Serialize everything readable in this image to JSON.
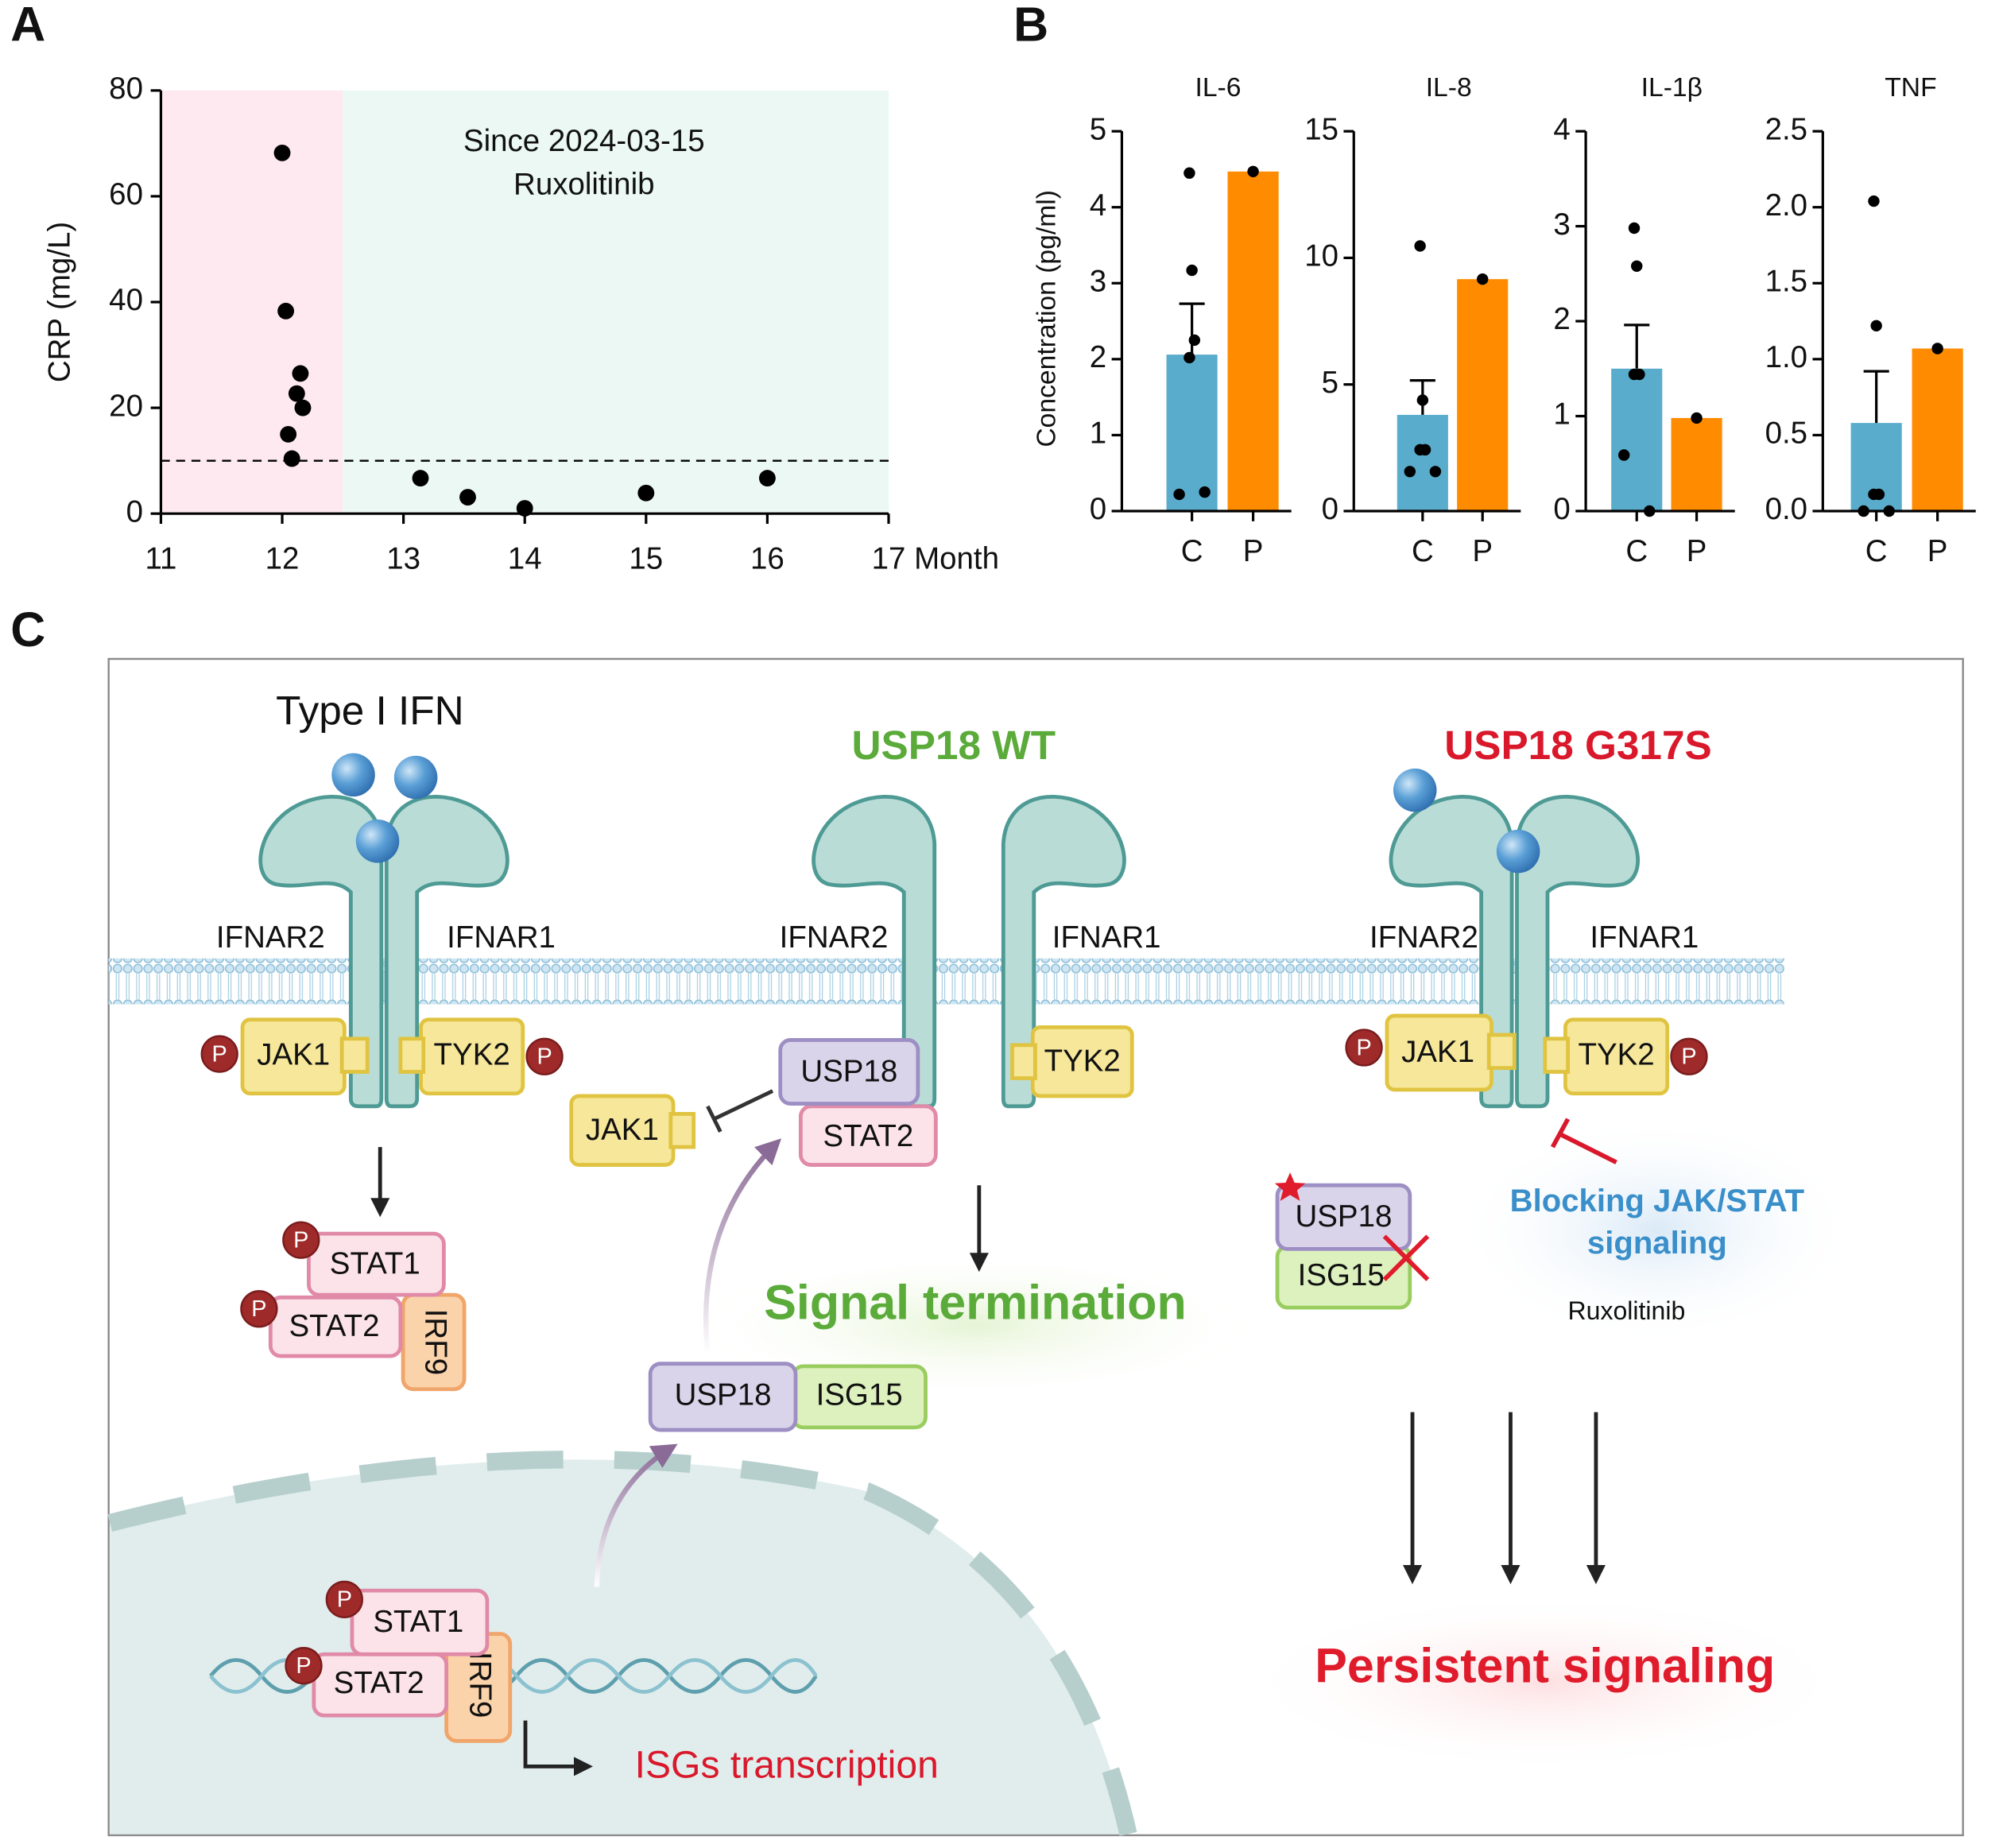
{
  "chart_data": [
    {
      "type": "scatter",
      "panel": "A",
      "xlabel": "Month",
      "ylabel": "CRP (mg/L)",
      "x": [
        12.0,
        12.03,
        12.15,
        12.12,
        12.17,
        12.05,
        12.08,
        13.14,
        13.53,
        14.0,
        15.0,
        16.0
      ],
      "values": [
        68.2,
        38.3,
        26.5,
        22.7,
        20.0,
        15.0,
        10.4,
        6.7,
        3.1,
        1.0,
        3.9,
        6.7
      ],
      "color": "#000000",
      "xlim": [
        11,
        17
      ],
      "ylim": [
        0,
        80
      ],
      "xticks": [
        11,
        12,
        13,
        14,
        15,
        16,
        17
      ],
      "yticks": [
        0,
        20,
        40,
        60,
        80
      ],
      "reference_line": 10,
      "regions": [
        {
          "x": [
            11,
            12.5
          ],
          "color": "#fde9ef"
        },
        {
          "x": [
            12.5,
            17
          ],
          "color": "#ebf8f3"
        }
      ],
      "annotation": [
        "Since 2024-03-15",
        "Ruxolitinib"
      ]
    },
    {
      "type": "bar",
      "panel": "B",
      "title": "IL-6",
      "ylabel": "Concentration (pg/ml)",
      "categories": [
        "C",
        "P"
      ],
      "values": [
        2.06,
        4.47
      ],
      "errors": [
        0.67,
        null
      ],
      "points": [
        [
          4.45,
          3.17,
          2.25,
          2.02,
          0.22,
          0.25
        ],
        [
          4.47
        ]
      ],
      "colors": [
        "#5aaccc",
        "#ff8c00"
      ],
      "ylim": [
        0,
        5
      ],
      "yticks": [
        0,
        1,
        2,
        3,
        4,
        5
      ]
    },
    {
      "type": "bar",
      "title": "IL-8",
      "categories": [
        "C",
        "P"
      ],
      "values": [
        3.8,
        9.16
      ],
      "errors": [
        1.36,
        null
      ],
      "points": [
        [
          10.47,
          4.38,
          2.42,
          2.42,
          1.56,
          1.56
        ],
        [
          9.16
        ]
      ],
      "colors": [
        "#5aaccc",
        "#ff8c00"
      ],
      "ylim": [
        0,
        15
      ],
      "yticks": [
        0,
        5,
        10,
        15
      ]
    },
    {
      "type": "bar",
      "title": "IL-1β",
      "categories": [
        "C",
        "P"
      ],
      "values": [
        1.5,
        0.98
      ],
      "errors": [
        0.46,
        null
      ],
      "points": [
        [
          2.98,
          2.58,
          1.44,
          1.44,
          0.59,
          0
        ],
        [
          0.98
        ]
      ],
      "colors": [
        "#5aaccc",
        "#ff8c00"
      ],
      "ylim": [
        0,
        4
      ],
      "yticks": [
        0,
        1,
        2,
        3,
        4
      ]
    },
    {
      "type": "bar",
      "title": "TNF",
      "categories": [
        "C",
        "P"
      ],
      "values": [
        0.58,
        1.07
      ],
      "errors": [
        0.34,
        null
      ],
      "points": [
        [
          2.04,
          1.22,
          0.11,
          0.11,
          0,
          0
        ],
        [
          1.07
        ]
      ],
      "colors": [
        "#5aaccc",
        "#ff8c00"
      ],
      "ylim": [
        0,
        2.5
      ],
      "yticks": [
        {
          "value": 0,
          "label": "0.0"
        },
        0.5,
        {
          "value": 1,
          "label": "1.0"
        },
        1.5,
        {
          "value": 2,
          "label": "2.0"
        },
        2.5
      ]
    }
  ],
  "diagram": {
    "panel": "C",
    "ligand": "Type I IFN",
    "wt": "USP18 WT",
    "mutant": "USP18 G317S",
    "receptor2": "IFNAR2",
    "receptor1": "IFNAR1",
    "phospho": "P",
    "jak1": "JAK1",
    "tyk2": "TYK2",
    "usp18": "USP18",
    "stat1": "STAT1",
    "stat2": "STAT2",
    "irf9": "IRF9",
    "isg15": "ISG15",
    "termination": "Signal termination",
    "blocking": [
      "Blocking JAK/STAT",
      "signaling"
    ],
    "drug": "Ruxolitinib",
    "persistent": "Persistent signaling",
    "transcription": "ISGs transcription"
  }
}
